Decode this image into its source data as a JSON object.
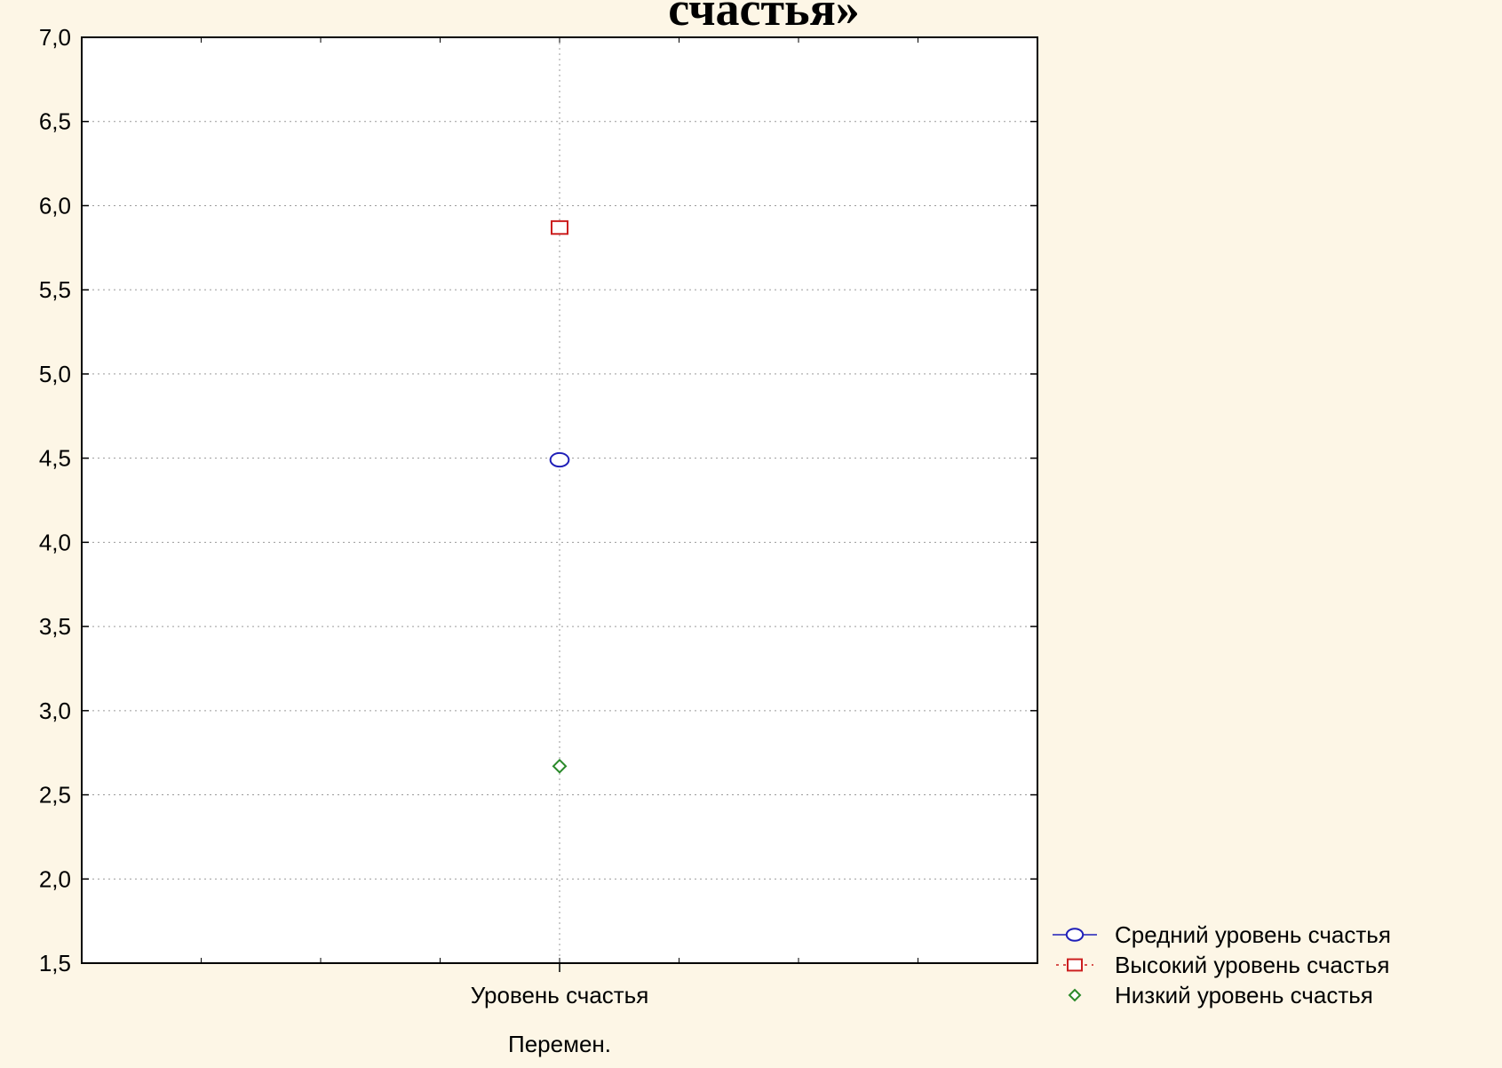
{
  "chart_data": {
    "type": "scatter",
    "title": "счастья»",
    "xlabel": "Перемен.",
    "ylabel": "",
    "categories": [
      "Уровень счастья"
    ],
    "ylim": [
      1.5,
      7.0
    ],
    "yticks": [
      "1,5",
      "2,0",
      "2,5",
      "3,0",
      "3,5",
      "4,0",
      "4,5",
      "5,0",
      "5,5",
      "6,0",
      "6,5",
      "7,0"
    ],
    "ytick_values": [
      1.5,
      2.0,
      2.5,
      3.0,
      3.5,
      4.0,
      4.5,
      5.0,
      5.5,
      6.0,
      6.5,
      7.0
    ],
    "grid": true,
    "legend_position": "bottom-right, outside plot",
    "series": [
      {
        "name": "Средний уровень счастья",
        "values": [
          4.49
        ],
        "marker": "circle",
        "color": "#1f1fb8"
      },
      {
        "name": "Высокий уровень счастья",
        "values": [
          5.87
        ],
        "marker": "square",
        "color": "#cc1f1f"
      },
      {
        "name": "Низкий уровень счастья",
        "values": [
          2.67
        ],
        "marker": "diamond",
        "color": "#2a8a2a"
      }
    ]
  }
}
